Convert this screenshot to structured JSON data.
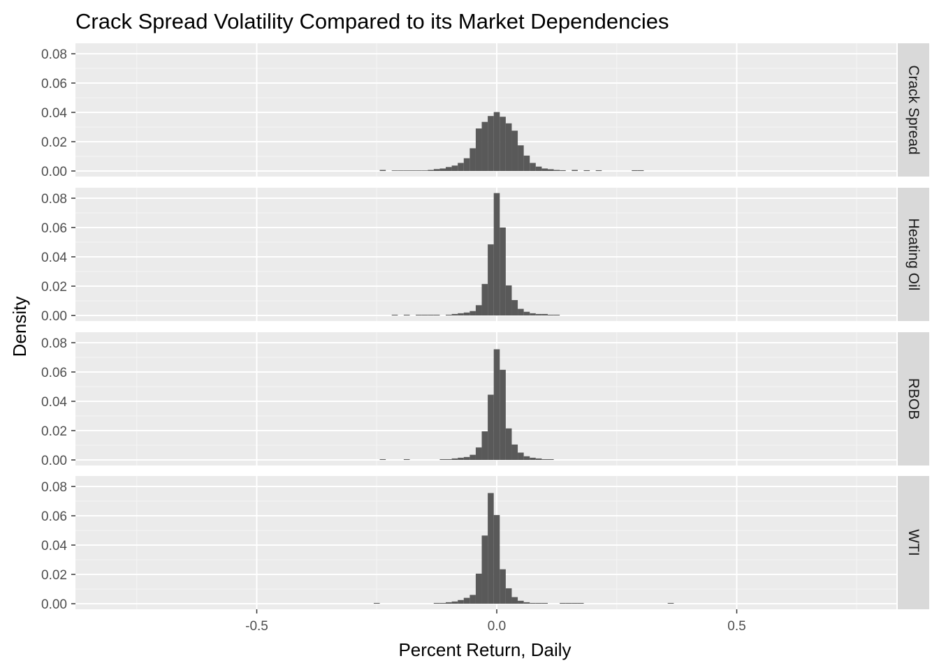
{
  "chart_data": {
    "type": "bar",
    "title": "Crack Spread Volatility Compared to its Market Dependencies",
    "xlabel": "Percent Return, Daily",
    "ylabel": "Density",
    "xlim": [
      -0.88,
      0.85
    ],
    "ylim": [
      0,
      0.085
    ],
    "x_ticks": [
      -0.5,
      0.0,
      0.5
    ],
    "x_tick_labels": [
      "-0.5",
      "0.0",
      "0.5"
    ],
    "y_ticks": [
      0,
      0.02,
      0.04,
      0.06,
      0.08
    ],
    "y_tick_labels": [
      "0.00",
      "0.02",
      "0.04",
      "0.06",
      "0.08"
    ],
    "bin_width": 0.0125,
    "grid": true,
    "bar_color": "#595959",
    "panel_background": "#ebebeb",
    "strip_background": "#d9d9d9",
    "panels": [
      {
        "name": "Crack Spread",
        "bins": [
          {
            "x": -0.2375,
            "y": 0.0007
          },
          {
            "x": -0.2125,
            "y": 0.0003
          },
          {
            "x": -0.2,
            "y": 0.0003
          },
          {
            "x": -0.1875,
            "y": 0.0003
          },
          {
            "x": -0.175,
            "y": 0.0003
          },
          {
            "x": -0.1625,
            "y": 0.0003
          },
          {
            "x": -0.15,
            "y": 0.0003
          },
          {
            "x": -0.1375,
            "y": 0.0007
          },
          {
            "x": -0.125,
            "y": 0.0013
          },
          {
            "x": -0.1125,
            "y": 0.0017
          },
          {
            "x": -0.1,
            "y": 0.0027
          },
          {
            "x": -0.0875,
            "y": 0.0037
          },
          {
            "x": -0.075,
            "y": 0.0055
          },
          {
            "x": -0.0625,
            "y": 0.0087
          },
          {
            "x": -0.05,
            "y": 0.0155
          },
          {
            "x": -0.0375,
            "y": 0.029
          },
          {
            "x": -0.025,
            "y": 0.0335
          },
          {
            "x": -0.0125,
            "y": 0.0375
          },
          {
            "x": 0.0,
            "y": 0.0402
          },
          {
            "x": 0.0125,
            "y": 0.037
          },
          {
            "x": 0.025,
            "y": 0.0325
          },
          {
            "x": 0.0375,
            "y": 0.0275
          },
          {
            "x": 0.05,
            "y": 0.0175
          },
          {
            "x": 0.0625,
            "y": 0.0105
          },
          {
            "x": 0.075,
            "y": 0.0055
          },
          {
            "x": 0.0875,
            "y": 0.003
          },
          {
            "x": 0.1,
            "y": 0.0017
          },
          {
            "x": 0.1125,
            "y": 0.0012
          },
          {
            "x": 0.125,
            "y": 0.0007
          },
          {
            "x": 0.1375,
            "y": 0.0005
          },
          {
            "x": 0.1625,
            "y": 0.0007
          },
          {
            "x": 0.1875,
            "y": 0.0005
          },
          {
            "x": 0.2125,
            "y": 0.0005
          },
          {
            "x": 0.2875,
            "y": 0.0005
          },
          {
            "x": 0.3,
            "y": 0.0005
          }
        ]
      },
      {
        "name": "Heating Oil",
        "bins": [
          {
            "x": -0.2125,
            "y": 0.0005
          },
          {
            "x": -0.1875,
            "y": 0.0005
          },
          {
            "x": -0.1625,
            "y": 0.0005
          },
          {
            "x": -0.15,
            "y": 0.0005
          },
          {
            "x": -0.1375,
            "y": 0.0005
          },
          {
            "x": -0.125,
            "y": 0.0005
          },
          {
            "x": -0.1,
            "y": 0.0005
          },
          {
            "x": -0.0875,
            "y": 0.001
          },
          {
            "x": -0.075,
            "y": 0.0015
          },
          {
            "x": -0.0625,
            "y": 0.002
          },
          {
            "x": -0.05,
            "y": 0.003
          },
          {
            "x": -0.0375,
            "y": 0.007
          },
          {
            "x": -0.025,
            "y": 0.0215
          },
          {
            "x": -0.0125,
            "y": 0.0485
          },
          {
            "x": 0.0,
            "y": 0.0835
          },
          {
            "x": 0.0125,
            "y": 0.06
          },
          {
            "x": 0.025,
            "y": 0.0205
          },
          {
            "x": 0.0375,
            "y": 0.0105
          },
          {
            "x": 0.05,
            "y": 0.0045
          },
          {
            "x": 0.0625,
            "y": 0.0025
          },
          {
            "x": 0.075,
            "y": 0.0015
          },
          {
            "x": 0.0875,
            "y": 0.001
          },
          {
            "x": 0.1,
            "y": 0.001
          },
          {
            "x": 0.1125,
            "y": 0.0005
          },
          {
            "x": 0.125,
            "y": 0.0005
          }
        ]
      },
      {
        "name": "RBOB",
        "bins": [
          {
            "x": -0.2375,
            "y": 0.0005
          },
          {
            "x": -0.1875,
            "y": 0.0005
          },
          {
            "x": -0.1125,
            "y": 0.0005
          },
          {
            "x": -0.1,
            "y": 0.0005
          },
          {
            "x": -0.0875,
            "y": 0.001
          },
          {
            "x": -0.075,
            "y": 0.0015
          },
          {
            "x": -0.0625,
            "y": 0.002
          },
          {
            "x": -0.05,
            "y": 0.0035
          },
          {
            "x": -0.0375,
            "y": 0.0085
          },
          {
            "x": -0.025,
            "y": 0.0195
          },
          {
            "x": -0.0125,
            "y": 0.0445
          },
          {
            "x": 0.0,
            "y": 0.0755
          },
          {
            "x": 0.0125,
            "y": 0.0615
          },
          {
            "x": 0.025,
            "y": 0.0215
          },
          {
            "x": 0.0375,
            "y": 0.0105
          },
          {
            "x": 0.05,
            "y": 0.005
          },
          {
            "x": 0.0625,
            "y": 0.0025
          },
          {
            "x": 0.075,
            "y": 0.0015
          },
          {
            "x": 0.0875,
            "y": 0.001
          },
          {
            "x": 0.1,
            "y": 0.0005
          },
          {
            "x": 0.1125,
            "y": 0.0005
          }
        ]
      },
      {
        "name": "WTI",
        "bins": [
          {
            "x": -0.25,
            "y": 0.0005
          },
          {
            "x": -0.125,
            "y": 0.0005
          },
          {
            "x": -0.1125,
            "y": 0.0005
          },
          {
            "x": -0.1,
            "y": 0.001
          },
          {
            "x": -0.0875,
            "y": 0.0015
          },
          {
            "x": -0.075,
            "y": 0.0025
          },
          {
            "x": -0.0625,
            "y": 0.004
          },
          {
            "x": -0.05,
            "y": 0.006
          },
          {
            "x": -0.0375,
            "y": 0.0205
          },
          {
            "x": -0.025,
            "y": 0.0465
          },
          {
            "x": -0.0125,
            "y": 0.0755
          },
          {
            "x": 0.0,
            "y": 0.0605
          },
          {
            "x": 0.0125,
            "y": 0.0235
          },
          {
            "x": 0.025,
            "y": 0.0105
          },
          {
            "x": 0.0375,
            "y": 0.0045
          },
          {
            "x": 0.05,
            "y": 0.002
          },
          {
            "x": 0.0625,
            "y": 0.001
          },
          {
            "x": 0.075,
            "y": 0.0005
          },
          {
            "x": 0.0875,
            "y": 0.0005
          },
          {
            "x": 0.1,
            "y": 0.0005
          },
          {
            "x": 0.1375,
            "y": 0.0005
          },
          {
            "x": 0.15,
            "y": 0.0005
          },
          {
            "x": 0.1625,
            "y": 0.0005
          },
          {
            "x": 0.175,
            "y": 0.0005
          },
          {
            "x": 0.3625,
            "y": 0.0005
          }
        ]
      }
    ]
  }
}
